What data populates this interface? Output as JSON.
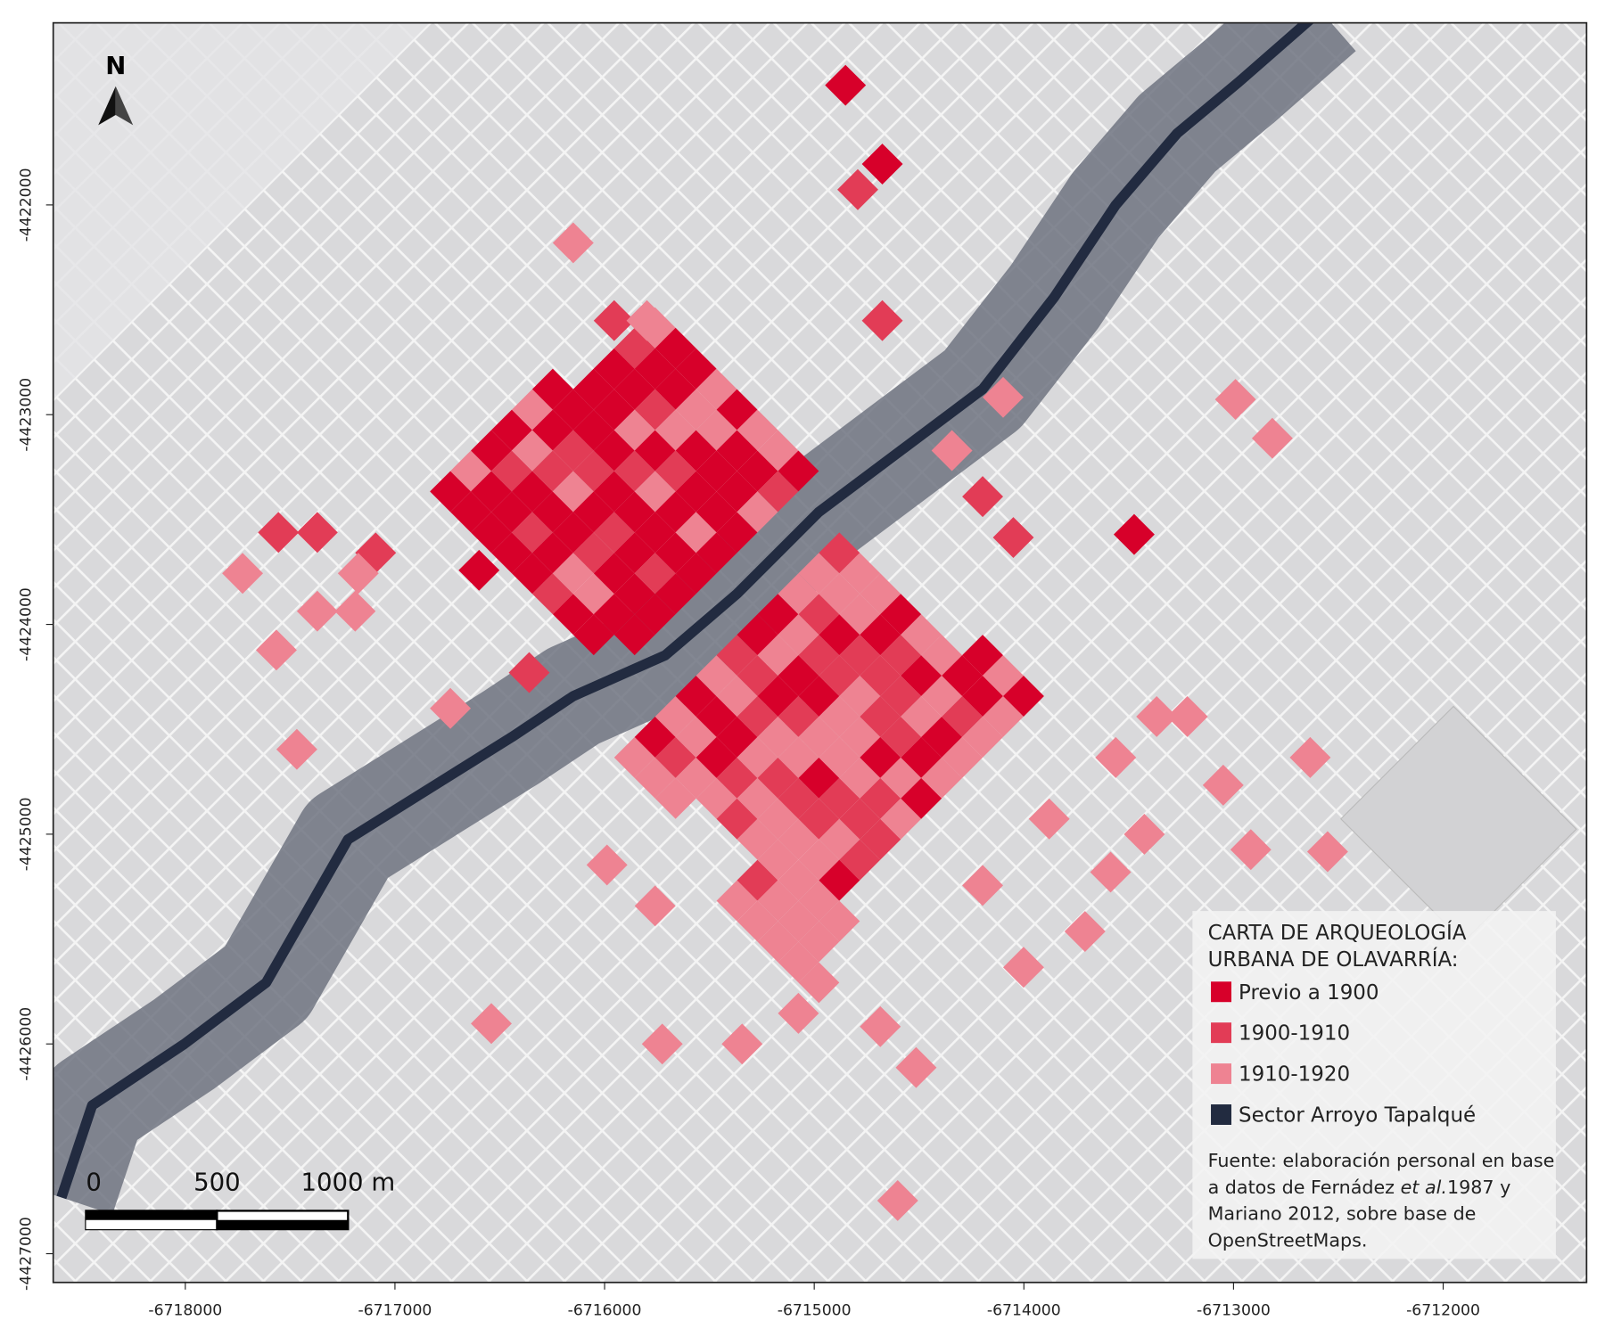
{
  "map": {
    "north": "N",
    "x_axis": {
      "lim": [
        -6718630,
        -6711316
      ],
      "ticks": [
        -6718000,
        -6717000,
        -6716000,
        -6715000,
        -6714000,
        -6713000,
        -6712000
      ]
    },
    "y_axis": {
      "lim": [
        -4421132,
        -4427137
      ],
      "ticks": [
        -4422000,
        -4423000,
        -4424000,
        -4425000,
        -4426000,
        -4427000
      ]
    },
    "scale_bar": {
      "lim": [
        0,
        1000
      ],
      "ticks": [
        0,
        500,
        {
          "value": 1000,
          "label": "1000 m"
        }
      ]
    },
    "legend": {
      "title": [
        "CARTA DE ARQUEOLOGÍA",
        "URBANA DE OLAVARRÍA:"
      ],
      "entries": [
        {
          "name": "Previo a 1900",
          "color": "#d7002a"
        },
        {
          "name": "1900-1910",
          "color": "#e23c56"
        },
        {
          "name": "1910-1920",
          "color": "#ee8392"
        },
        {
          "name": "Sector Arroyo Tapalqué",
          "color": "#222b40"
        }
      ],
      "source": [
        [
          "Fuente: elaboración personal en base"
        ],
        [
          "a datos de Fernádez ",
          "et al.",
          "1987 y"
        ],
        [
          "Mariano 2012, sobre base de"
        ],
        [
          "OpenStreetMaps."
        ]
      ]
    }
  }
}
